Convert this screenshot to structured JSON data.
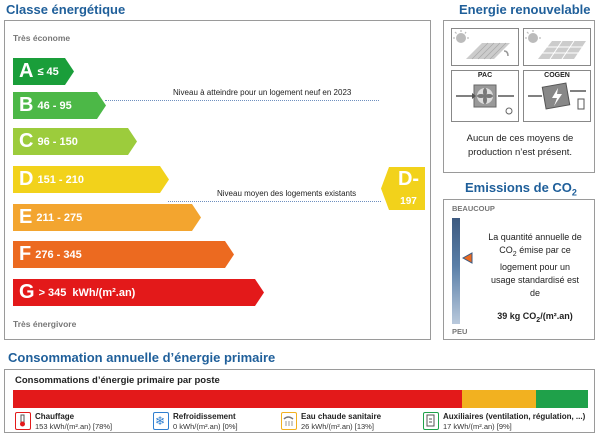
{
  "sections": {
    "classe_title": "Classe énergétique",
    "renouvelable_title": "Energie renouvelable",
    "emissions_title_prefix": "Emissions de CO",
    "emissions_title_sub": "2",
    "consommation_title": "Consommation annuelle d’énergie primaire"
  },
  "classe": {
    "top_label": "Très économe",
    "bottom_label": "Très énergivore",
    "bars": [
      {
        "letter": "A",
        "range": "≤ 45",
        "color": "#1a9e3a"
      },
      {
        "letter": "B",
        "range": "46 - 95",
        "color": "#4cb847"
      },
      {
        "letter": "C",
        "range": "96 - 150",
        "color": "#9ccc3c"
      },
      {
        "letter": "D",
        "range": "151 - 210",
        "color": "#f2d21b"
      },
      {
        "letter": "E",
        "range": "211 - 275",
        "color": "#f3a52f"
      },
      {
        "letter": "F",
        "range": "276 - 345",
        "color": "#ec6a20"
      },
      {
        "letter": "G",
        "range": "> 345",
        "unit": "kWh/(m².an)",
        "color": "#e3191a"
      }
    ],
    "note_new": "Niveau à atteindre pour un logement neuf en 2023",
    "note_avg": "Niveau moyen des logements existants",
    "current": {
      "letter": "D-",
      "value": "197",
      "color": "#f2d21b"
    }
  },
  "renouvelable": {
    "icon_labels": {
      "pac": "PAC",
      "cogen": "COGEN"
    },
    "text": "Aucun de ces moyens de production n’est présent."
  },
  "co2": {
    "top_label": "BEAUCOUP",
    "bottom_label": "PEU",
    "text_line1": "La quantité annuelle de",
    "text_line2a": "CO",
    "text_line2sub": "2",
    "text_line2b": " émise par ce",
    "text_line3": "logement pour un",
    "text_line4": "usage standardisé est",
    "text_line5": "de",
    "value_a": "39 kg CO",
    "value_sub": "2",
    "value_b": "/(m².an)"
  },
  "consommation": {
    "subtitle": "Consommations d’énergie primaire par poste",
    "segments": [
      {
        "name": "Chauffage",
        "value": "153 kWh/(m².an) [78%]",
        "color": "#e3191a",
        "percent": 78
      },
      {
        "name": "Refroidissement",
        "value": "0 kWh/(m².an) [0%]",
        "color": "#2f7fd0",
        "percent": 0
      },
      {
        "name": "Eau chaude sanitaire",
        "value": "26 kWh/(m².an) [13%]",
        "color": "#f2b120",
        "percent": 13
      },
      {
        "name": "Auxiliaires (ventilation, régulation, ...)",
        "value": "17 kWh/(m².an) [9%]",
        "color": "#1fa14a",
        "percent": 9
      }
    ]
  }
}
